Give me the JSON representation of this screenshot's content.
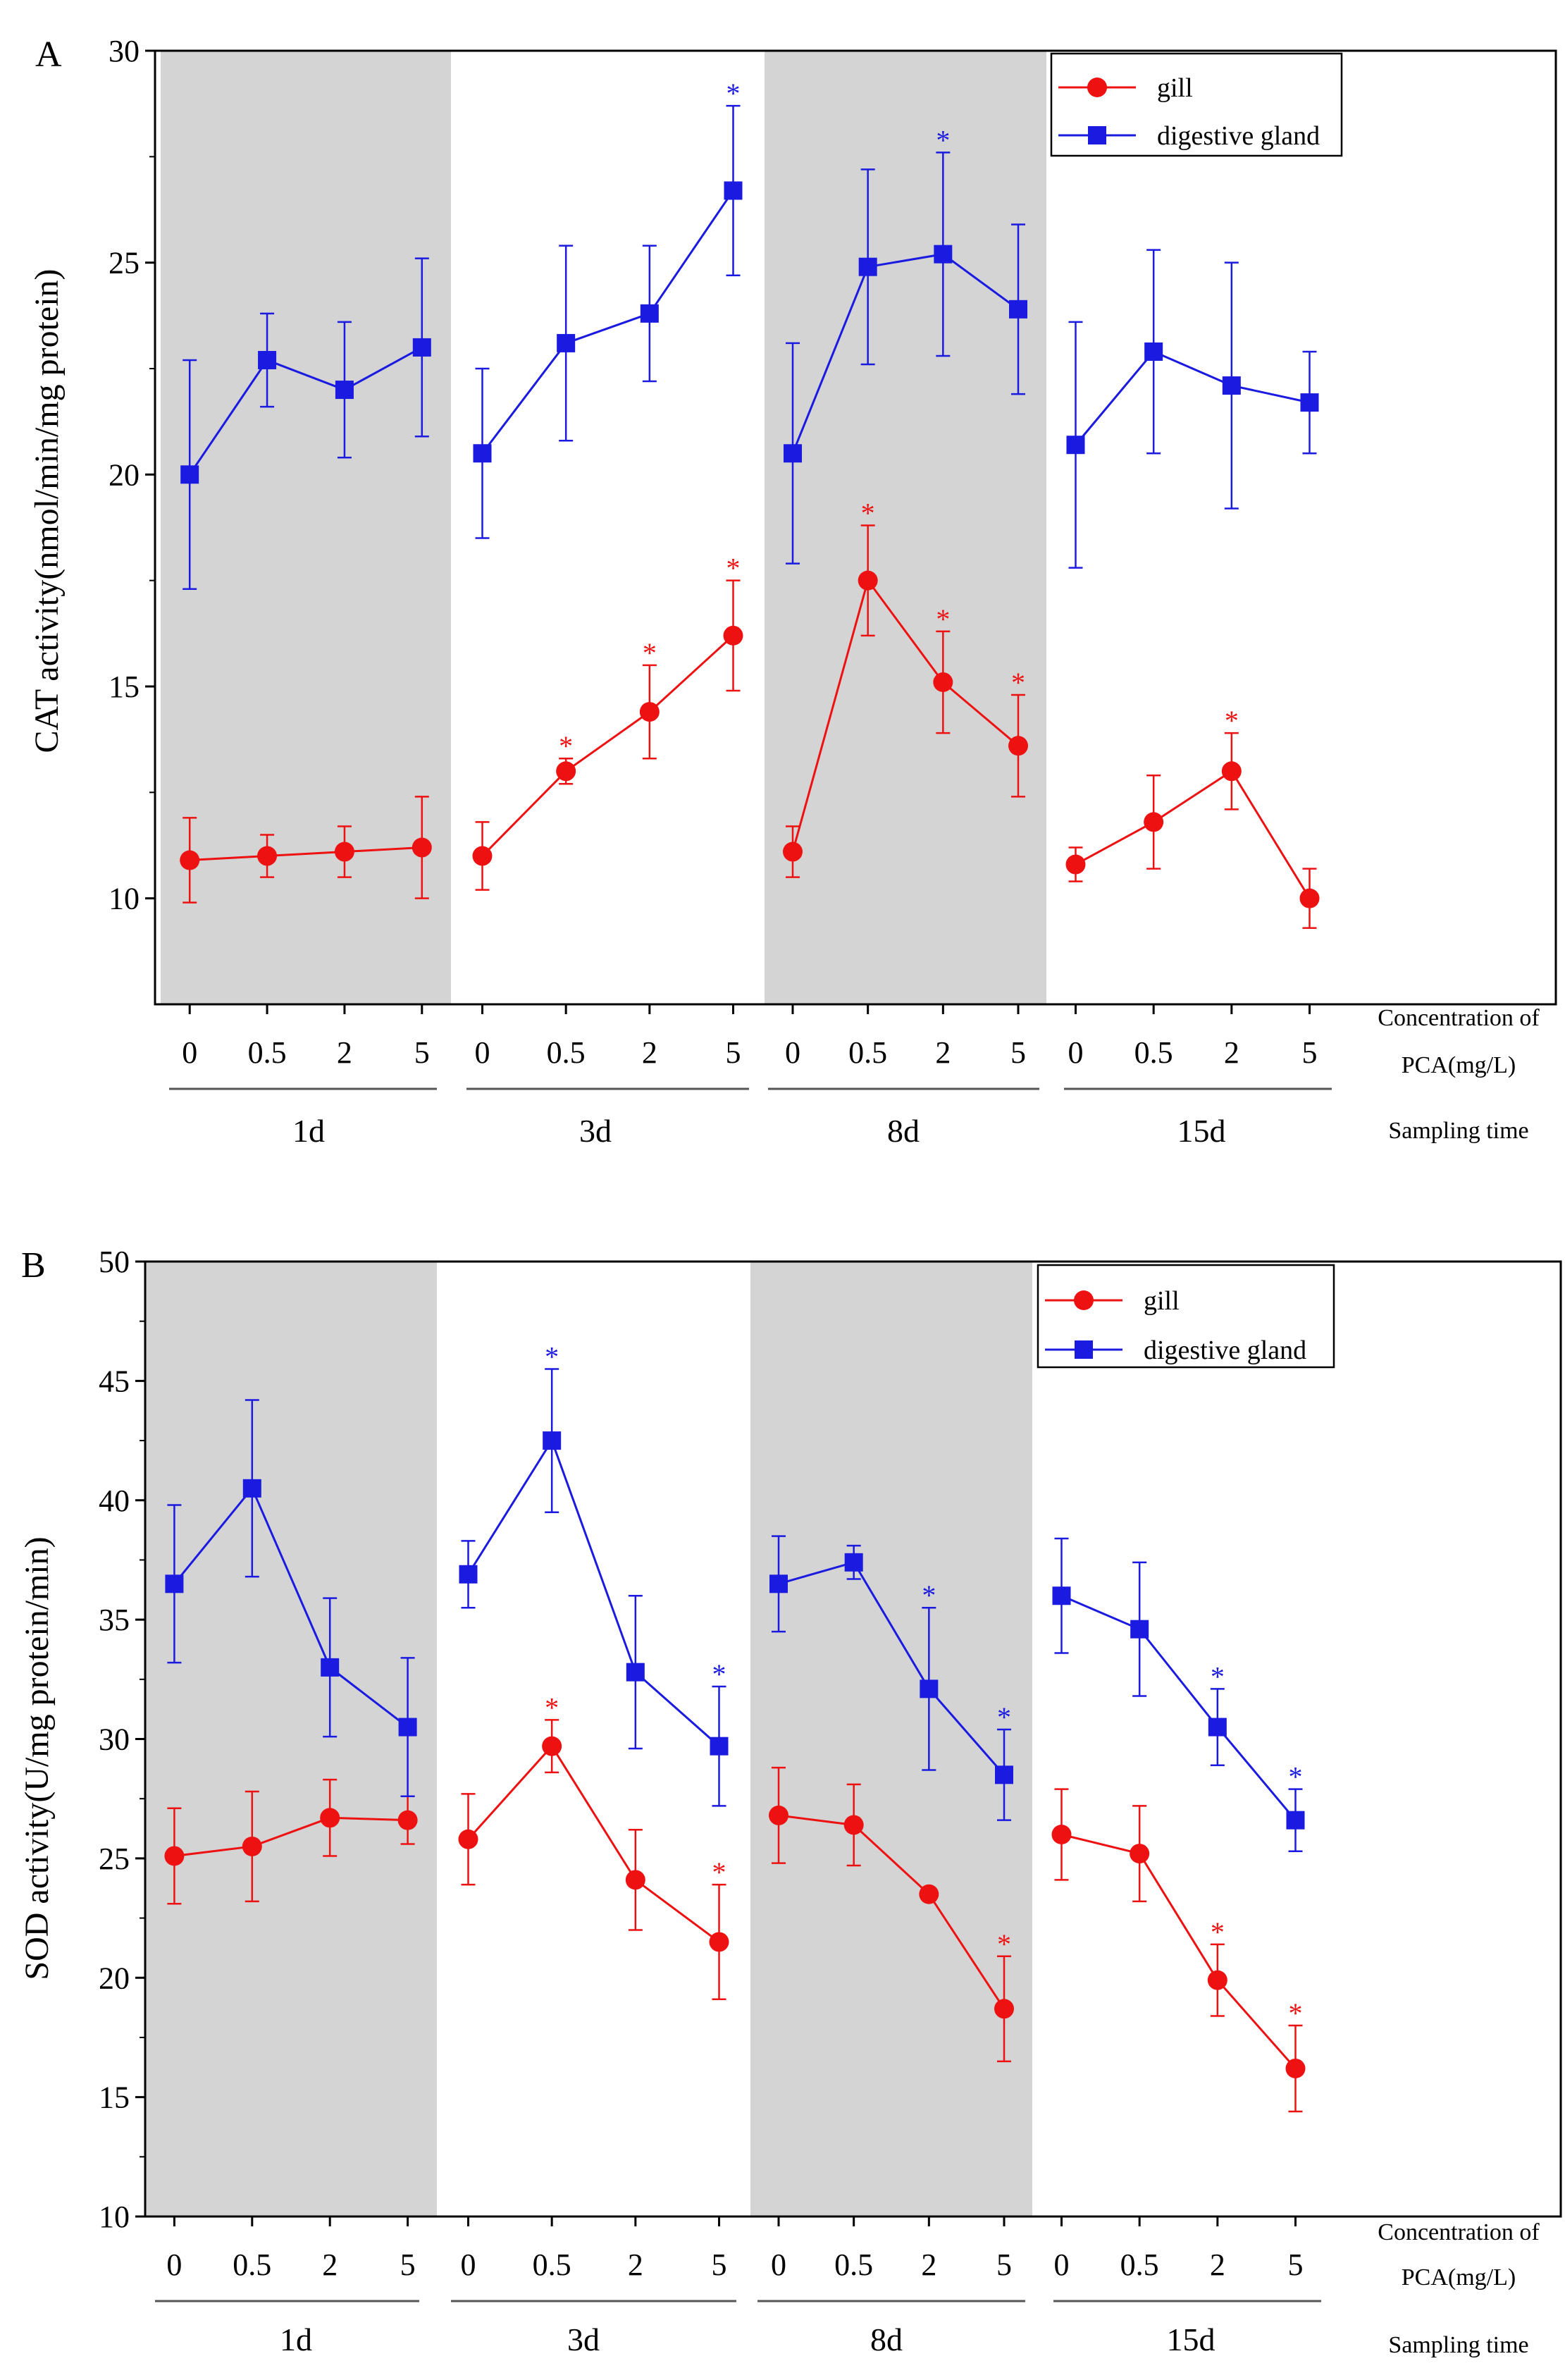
{
  "colors": {
    "gill": "#ee1111",
    "digestive_gland": "#1a1ae0",
    "shade": "#d4d4d4"
  },
  "shared": {
    "categories": [
      "0",
      "0.5",
      "2",
      "5"
    ],
    "groups": [
      "1d",
      "3d",
      "8d",
      "15d"
    ],
    "shaded_groups": [
      0,
      2
    ],
    "xlabel_line1": "Concentration of",
    "xlabel_line2": "PCA(mg/L)",
    "sampling_label": "Sampling time",
    "sig_marker": "*"
  },
  "chart_data": [
    {
      "type": "line",
      "panel_label": "A",
      "ylabel": "CAT activity(nmol/min/mg protein)",
      "ylim": [
        7.5,
        30
      ],
      "yticks": [
        10,
        15,
        20,
        25,
        30
      ],
      "legend_position": "top-right",
      "series": [
        {
          "name": "gill",
          "marker": "circle",
          "values": [
            [
              10.9,
              11.0,
              11.1,
              11.2
            ],
            [
              11.0,
              13.0,
              14.4,
              16.2
            ],
            [
              11.1,
              17.5,
              15.1,
              13.6
            ],
            [
              10.8,
              11.8,
              13.0,
              10.0
            ]
          ],
          "errors": [
            [
              1.0,
              0.5,
              0.6,
              1.2
            ],
            [
              0.8,
              0.3,
              1.1,
              1.3
            ],
            [
              0.6,
              1.3,
              1.2,
              1.2
            ],
            [
              0.4,
              1.1,
              0.9,
              0.7
            ]
          ],
          "significant": [
            [
              false,
              false,
              false,
              false
            ],
            [
              false,
              true,
              true,
              true
            ],
            [
              false,
              true,
              true,
              true
            ],
            [
              false,
              false,
              true,
              false
            ]
          ]
        },
        {
          "name": "digestive gland",
          "marker": "square",
          "values": [
            [
              20.0,
              22.7,
              22.0,
              23.0
            ],
            [
              20.5,
              23.1,
              23.8,
              26.7
            ],
            [
              20.5,
              24.9,
              25.2,
              23.9
            ],
            [
              20.7,
              22.9,
              22.1,
              21.7
            ]
          ],
          "errors": [
            [
              2.7,
              1.1,
              1.6,
              2.1
            ],
            [
              2.0,
              2.3,
              1.6,
              2.0
            ],
            [
              2.6,
              2.3,
              2.4,
              2.0
            ],
            [
              2.9,
              2.4,
              2.9,
              1.2
            ]
          ],
          "significant": [
            [
              false,
              false,
              false,
              false
            ],
            [
              false,
              false,
              false,
              true
            ],
            [
              false,
              false,
              true,
              false
            ],
            [
              false,
              false,
              false,
              false
            ]
          ]
        }
      ]
    },
    {
      "type": "line",
      "panel_label": "B",
      "ylabel": "SOD activity(U/mg protein/min)",
      "ylim": [
        10,
        50
      ],
      "yticks": [
        10,
        15,
        20,
        25,
        30,
        35,
        40,
        45,
        50
      ],
      "legend_position": "top-right",
      "series": [
        {
          "name": "gill",
          "marker": "circle",
          "values": [
            [
              25.1,
              25.5,
              26.7,
              26.6
            ],
            [
              25.8,
              29.7,
              24.1,
              21.5
            ],
            [
              26.8,
              26.4,
              23.5,
              18.7
            ],
            [
              26.0,
              25.2,
              19.9,
              16.2
            ]
          ],
          "errors": [
            [
              2.0,
              2.3,
              1.6,
              1.0
            ],
            [
              1.9,
              1.1,
              2.1,
              2.4
            ],
            [
              2.0,
              1.7,
              0.0,
              2.2
            ],
            [
              1.9,
              2.0,
              1.5,
              1.8
            ]
          ],
          "significant": [
            [
              false,
              false,
              false,
              false
            ],
            [
              false,
              true,
              false,
              true
            ],
            [
              false,
              false,
              false,
              true
            ],
            [
              false,
              false,
              true,
              true
            ]
          ]
        },
        {
          "name": "digestive gland",
          "marker": "square",
          "values": [
            [
              36.5,
              40.5,
              33.0,
              30.5
            ],
            [
              36.9,
              42.5,
              32.8,
              29.7
            ],
            [
              36.5,
              37.4,
              32.1,
              28.5
            ],
            [
              36.0,
              34.6,
              30.5,
              26.6
            ]
          ],
          "errors": [
            [
              3.3,
              3.7,
              2.9,
              2.9
            ],
            [
              1.4,
              3.0,
              3.2,
              2.5
            ],
            [
              2.0,
              0.7,
              3.4,
              1.9
            ],
            [
              2.4,
              2.8,
              1.6,
              1.3
            ]
          ],
          "significant": [
            [
              false,
              false,
              false,
              false
            ],
            [
              false,
              true,
              false,
              true
            ],
            [
              false,
              false,
              true,
              true
            ],
            [
              false,
              false,
              true,
              true
            ]
          ]
        }
      ]
    }
  ]
}
